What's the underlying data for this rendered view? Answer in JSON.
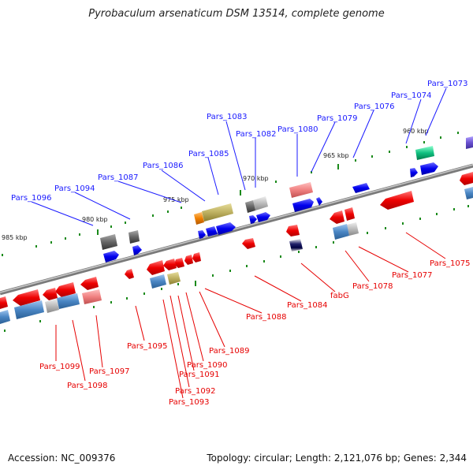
{
  "title": "Pyrobaculum arsenaticum DSM 13514, complete genome",
  "footer": {
    "accession": "Accession: NC_009376",
    "topology": "Topology: circular; Length: 2,121,076 bp; Genes: 2,344"
  },
  "kbp_markers": [
    "960 kbp",
    "965 kbp",
    "970 kbp",
    "975 kbp",
    "980 kbp",
    "985 kbp"
  ],
  "labels_top": [
    "Pars_1073",
    "Pars_1074",
    "Pars_1076",
    "Pars_1079",
    "Pars_1080",
    "Pars_1082",
    "Pars_1083",
    "Pars_1085",
    "Pars_1086",
    "Pars_1087",
    "Pars_1094",
    "Pars_1096"
  ],
  "labels_bottom": [
    "Pars_1075",
    "Pars_1077",
    "Pars_1078",
    "fabG",
    "Pars_1084",
    "Pars_1088",
    "Pars_1089",
    "Pars_1090",
    "Pars_1091",
    "Pars_1092",
    "Pars_1093",
    "Pars_1095",
    "Pars_1097",
    "Pars_1098",
    "Pars_1099"
  ],
  "colors": {
    "forward_gene": "#1010ee",
    "reverse_gene": "#ee1010",
    "backbone": "#888888",
    "tick": "#1a8a1a"
  }
}
